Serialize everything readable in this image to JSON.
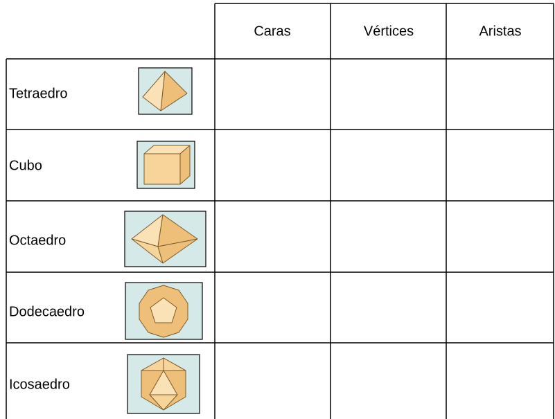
{
  "table": {
    "columns": [
      "Caras",
      "Vértices",
      "Aristas"
    ],
    "rows": [
      "Tetraedro",
      "Cubo",
      "Octaedro",
      "Dodecaedro",
      "Icosaedro"
    ]
  }
}
